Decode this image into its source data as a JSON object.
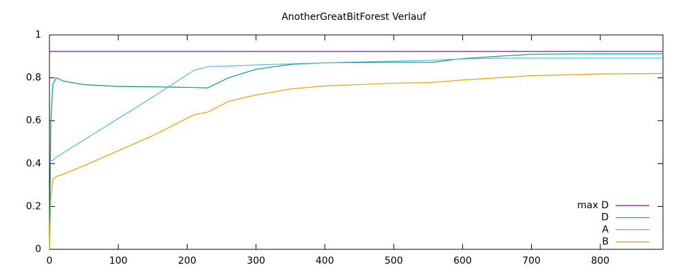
{
  "chart_data": {
    "type": "line",
    "title": "AnotherGreatBitForest Verlauf",
    "x": [
      0,
      2,
      5,
      10,
      20,
      50,
      100,
      150,
      210,
      230,
      260,
      300,
      350,
      400,
      500,
      555,
      600,
      650,
      700,
      800,
      890
    ],
    "series": [
      {
        "name": "max D",
        "color": "#9400d3",
        "values": [
          0.923,
          0.923,
          0.923,
          0.923,
          0.923,
          0.923,
          0.923,
          0.923,
          0.923,
          0.923,
          0.923,
          0.923,
          0.923,
          0.923,
          0.923,
          0.923,
          0.923,
          0.923,
          0.923,
          0.923,
          0.923
        ]
      },
      {
        "name": "D",
        "color": "#009e73",
        "values": [
          0,
          0.6,
          0.77,
          0.8,
          0.785,
          0.768,
          0.76,
          0.758,
          0.755,
          0.753,
          0.8,
          0.84,
          0.862,
          0.87,
          0.873,
          0.872,
          0.89,
          0.9,
          0.91,
          0.912,
          0.912
        ]
      },
      {
        "name": "A",
        "color": "#56b4e9",
        "values": [
          0.41,
          0.412,
          0.415,
          0.43,
          0.45,
          0.51,
          0.61,
          0.71,
          0.835,
          0.852,
          0.855,
          0.86,
          0.865,
          0.87,
          0.878,
          0.882,
          0.888,
          0.891,
          0.892,
          0.892,
          0.892
        ]
      },
      {
        "name": "B",
        "color": "#e69f00",
        "values": [
          0,
          0.25,
          0.325,
          0.34,
          0.35,
          0.39,
          0.46,
          0.53,
          0.628,
          0.64,
          0.69,
          0.72,
          0.748,
          0.762,
          0.775,
          0.778,
          0.79,
          0.8,
          0.81,
          0.818,
          0.82
        ]
      }
    ],
    "xlim": [
      0,
      891
    ],
    "ylim": [
      0,
      1
    ],
    "xticks": [
      0,
      100,
      200,
      300,
      400,
      500,
      600,
      700,
      800
    ],
    "yticks": [
      0,
      0.2,
      0.4,
      0.6,
      0.8,
      1
    ],
    "legend": "bottom-right"
  }
}
